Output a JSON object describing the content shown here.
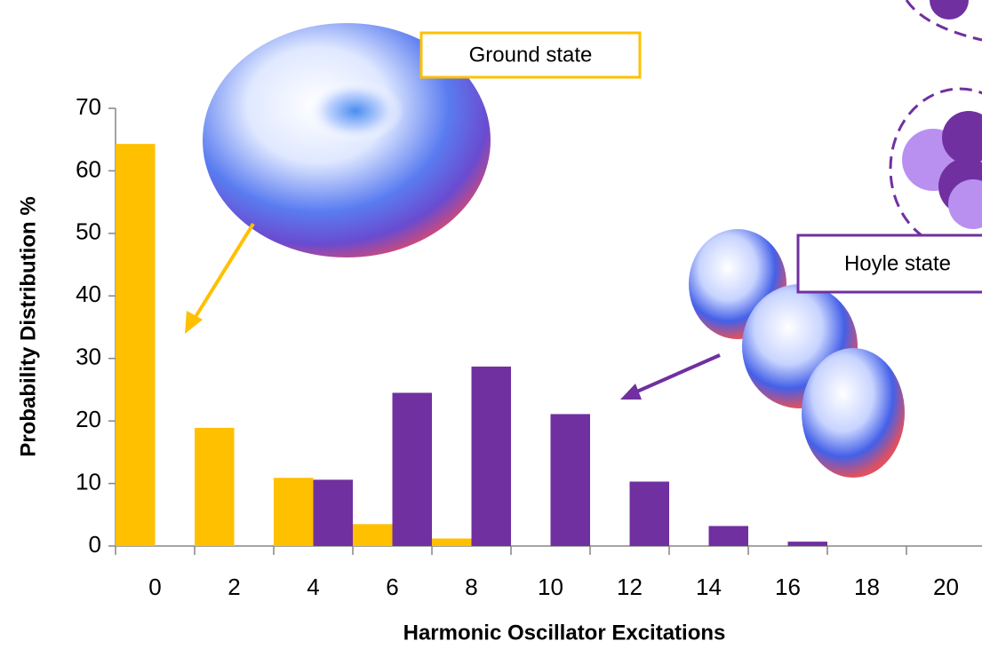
{
  "chart_data": {
    "type": "bar",
    "categories": [
      0,
      2,
      4,
      6,
      8,
      10,
      12,
      14,
      16,
      18,
      20
    ],
    "series": [
      {
        "name": "Ground state",
        "color": "#ffc000",
        "values": [
          64.3,
          18.9,
          10.9,
          3.5,
          1.2,
          0,
          0,
          0,
          0,
          0,
          0
        ]
      },
      {
        "name": "Hoyle state",
        "color": "#7030a0",
        "values": [
          0,
          0,
          10.6,
          24.5,
          28.7,
          21.1,
          10.3,
          3.2,
          0.7,
          0,
          0
        ]
      }
    ],
    "xlabel": "Harmonic Oscillator Excitations",
    "ylabel": "Probability Distribution %",
    "ylim": [
      0,
      70
    ],
    "yticks": [
      0,
      10,
      20,
      30,
      40,
      50,
      60,
      70
    ]
  }
}
